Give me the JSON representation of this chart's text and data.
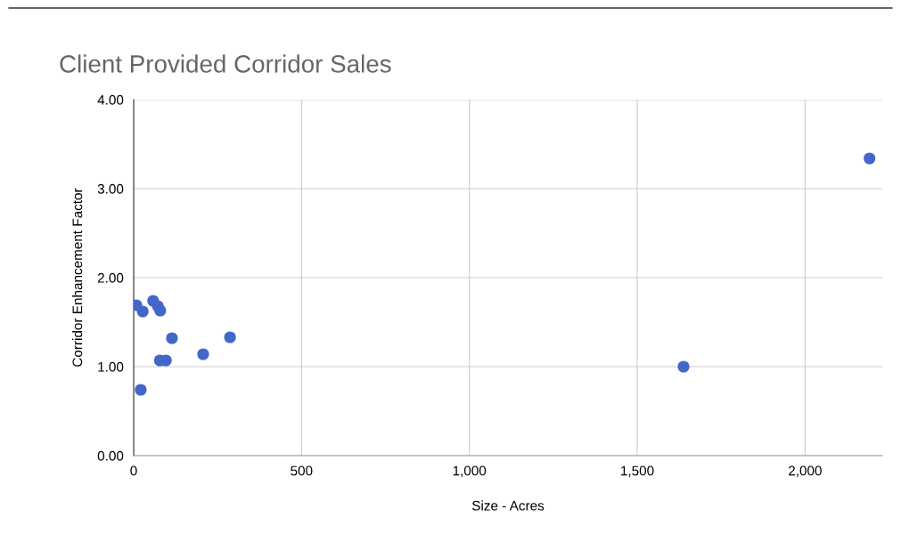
{
  "chart_data": {
    "type": "scatter",
    "title": "Client Provided Corridor Sales",
    "xlabel": "Size - Acres",
    "ylabel": "Corridor Enhancement Factor",
    "x": [
      8,
      27,
      58,
      72,
      79,
      114,
      287,
      78,
      96,
      207,
      21,
      1638,
      2192
    ],
    "values": [
      1.69,
      1.62,
      1.74,
      1.68,
      1.63,
      1.32,
      1.33,
      1.07,
      1.07,
      1.14,
      0.74,
      1.0,
      3.34
    ],
    "color": "#4267c9",
    "marker": "circle",
    "xlim": [
      0,
      2230
    ],
    "xticks": [
      {
        "value": 0,
        "label": "0"
      },
      {
        "value": 500,
        "label": "500"
      },
      {
        "value": 1000,
        "label": "1,000"
      },
      {
        "value": 1500,
        "label": "1,500"
      },
      {
        "value": 2000,
        "label": "2,000"
      }
    ],
    "ylim": [
      0,
      4
    ],
    "yticks": [
      {
        "value": 0,
        "label": "0.00"
      },
      {
        "value": 1,
        "label": "1.00"
      },
      {
        "value": 2,
        "label": "2.00"
      },
      {
        "value": 3,
        "label": "3.00"
      },
      {
        "value": 4,
        "label": "4.00"
      }
    ],
    "grid": true
  }
}
